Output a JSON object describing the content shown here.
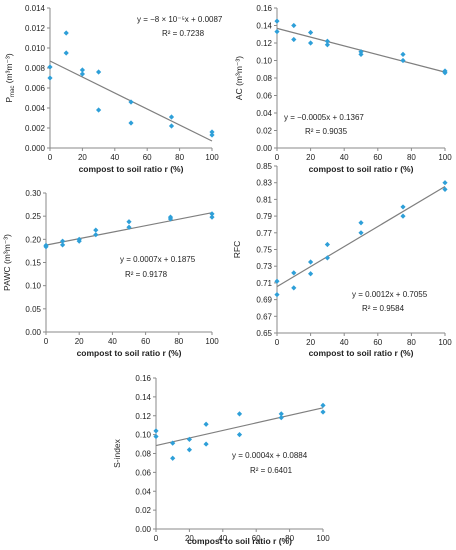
{
  "chart_data": [
    {
      "type": "scatter",
      "xlabel": "compost to soil ratio r (%)",
      "ylabel_main": "P",
      "ylabel_sub": "mac",
      "ylabel_unit": " (m³m⁻³)",
      "xlim": [
        0,
        100
      ],
      "ylim": [
        0,
        0.014
      ],
      "xticks": [
        "0",
        "20",
        "40",
        "60",
        "80",
        "100"
      ],
      "yticks": [
        "0.000",
        "0.002",
        "0.004",
        "0.006",
        "0.008",
        "0.010",
        "0.012",
        "0.014"
      ],
      "x": [
        0,
        0,
        10,
        10,
        20,
        20,
        30,
        30,
        50,
        50,
        75,
        75,
        100,
        100
      ],
      "y": [
        0.0081,
        0.007,
        0.0115,
        0.0095,
        0.0078,
        0.0074,
        0.0076,
        0.0038,
        0.0046,
        0.0025,
        0.0031,
        0.0022,
        0.0016,
        0.0013
      ],
      "fit": {
        "slope": -8e-05,
        "intercept": 0.0087
      },
      "equation": "y = −8 × 10⁻⁵x + 0.0087",
      "r2": "R² = 0.7238",
      "marker_color": "#2e9fd8",
      "line_color": "#7f7f7f"
    },
    {
      "type": "scatter",
      "xlabel": "compost to soil ratio r (%)",
      "ylabel_main": "AC (m³m⁻³)",
      "xlim": [
        0,
        100
      ],
      "ylim": [
        0,
        0.16
      ],
      "xticks": [
        "0",
        "20",
        "40",
        "60",
        "80",
        "100"
      ],
      "yticks": [
        "0.00",
        "0.02",
        "0.04",
        "0.06",
        "0.08",
        "0.10",
        "0.12",
        "0.14",
        "0.16"
      ],
      "x": [
        0,
        0,
        10,
        10,
        20,
        20,
        30,
        30,
        50,
        50,
        75,
        75,
        100,
        100
      ],
      "y": [
        0.145,
        0.133,
        0.14,
        0.124,
        0.132,
        0.12,
        0.122,
        0.118,
        0.11,
        0.107,
        0.107,
        0.1,
        0.088,
        0.086
      ],
      "fit": {
        "slope": -0.0005,
        "intercept": 0.1367
      },
      "equation": "y = −0.0005x + 0.1367",
      "r2": "R² = 0.9035",
      "marker_color": "#2e9fd8",
      "line_color": "#7f7f7f"
    },
    {
      "type": "scatter",
      "xlabel": "compost to soil ratio r (%)",
      "ylabel_main": "PAWC (m³m⁻³)",
      "xlim": [
        0,
        100
      ],
      "ylim": [
        0,
        0.3
      ],
      "xticks": [
        "0",
        "20",
        "40",
        "60",
        "80",
        "100"
      ],
      "yticks": [
        "0.00",
        "0.05",
        "0.10",
        "0.15",
        "0.20",
        "0.25",
        "0.30"
      ],
      "x": [
        0,
        0,
        10,
        10,
        20,
        20,
        30,
        30,
        50,
        50,
        75,
        75,
        100,
        100
      ],
      "y": [
        0.187,
        0.184,
        0.196,
        0.188,
        0.2,
        0.196,
        0.22,
        0.21,
        0.238,
        0.226,
        0.248,
        0.244,
        0.255,
        0.248
      ],
      "fit": {
        "slope": 0.0007,
        "intercept": 0.1875
      },
      "equation": "y = 0.0007x + 0.1875",
      "r2": "R² = 0.9178",
      "marker_color": "#2e9fd8",
      "line_color": "#7f7f7f"
    },
    {
      "type": "scatter",
      "xlabel": "compost to soil ratio r (%)",
      "ylabel_main": "RFC",
      "xlim": [
        0,
        100
      ],
      "ylim": [
        0.65,
        0.85
      ],
      "xticks": [
        "0",
        "20",
        "40",
        "60",
        "80",
        "100"
      ],
      "yticks": [
        "0.65",
        "0.67",
        "0.69",
        "0.71",
        "0.73",
        "0.75",
        "0.77",
        "0.79",
        "0.81",
        "0.83",
        "0.85"
      ],
      "x": [
        0,
        0,
        10,
        10,
        20,
        20,
        30,
        30,
        50,
        50,
        75,
        75,
        100,
        100
      ],
      "y": [
        0.712,
        0.696,
        0.722,
        0.704,
        0.735,
        0.721,
        0.756,
        0.74,
        0.782,
        0.77,
        0.801,
        0.79,
        0.83,
        0.822
      ],
      "fit": {
        "slope": 0.0012,
        "intercept": 0.7055
      },
      "equation": "y = 0.0012x + 0.7055",
      "r2": "R² = 0.9584",
      "marker_color": "#2e9fd8",
      "line_color": "#7f7f7f"
    },
    {
      "type": "scatter",
      "xlabel": "compost to soil ratio r (%)",
      "ylabel_main": "S-index",
      "xlim": [
        0,
        100
      ],
      "ylim": [
        0,
        0.16
      ],
      "xticks": [
        "0",
        "20",
        "40",
        "60",
        "80",
        "100"
      ],
      "yticks": [
        "0.00",
        "0.02",
        "0.04",
        "0.06",
        "0.08",
        "0.10",
        "0.12",
        "0.14",
        "0.16"
      ],
      "x": [
        0,
        0,
        10,
        10,
        20,
        20,
        30,
        30,
        50,
        50,
        75,
        75,
        100,
        100
      ],
      "y": [
        0.104,
        0.098,
        0.091,
        0.075,
        0.095,
        0.084,
        0.111,
        0.09,
        0.122,
        0.1,
        0.122,
        0.118,
        0.131,
        0.124
      ],
      "fit": {
        "slope": 0.0004,
        "intercept": 0.0884
      },
      "equation": "y = 0.0004x + 0.0884",
      "r2": "R² = 0.6401",
      "marker_color": "#2e9fd8",
      "line_color": "#7f7f7f"
    }
  ]
}
